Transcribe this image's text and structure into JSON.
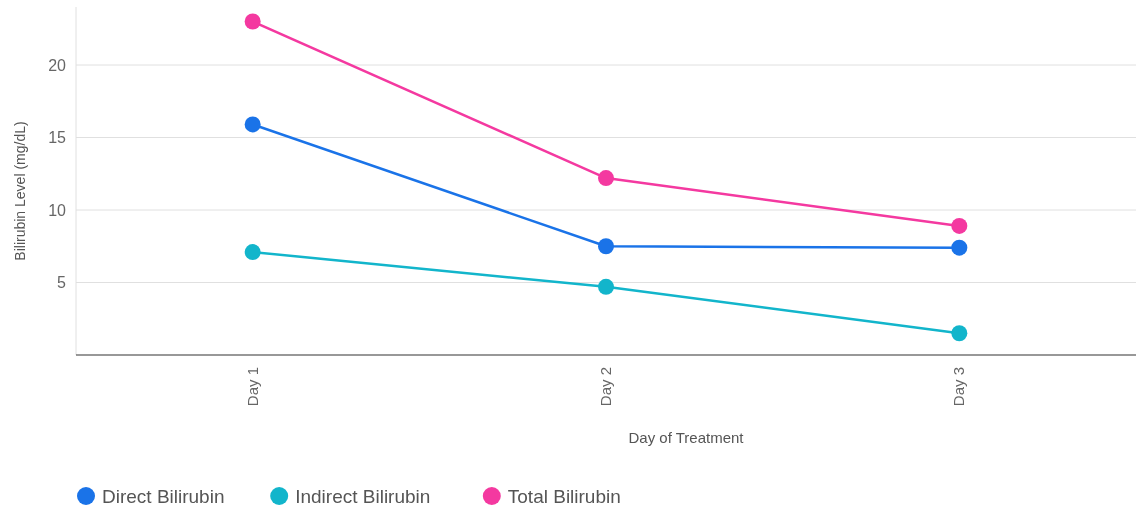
{
  "chart_data": {
    "type": "line",
    "xlabel": "Day of Treatment",
    "ylabel": "Bilirubin Level (mg/dL)",
    "categories": [
      "Day 1",
      "Day 2",
      "Day 3"
    ],
    "series": [
      {
        "name": "Direct Bilirubin",
        "color": "#1a73e8",
        "values": [
          15.9,
          7.5,
          7.4
        ]
      },
      {
        "name": "Indirect Bilirubin",
        "color": "#12b5cb",
        "values": [
          7.1,
          4.7,
          1.5
        ]
      },
      {
        "name": "Total Bilirubin",
        "color": "#f439a0",
        "values": [
          23,
          12.2,
          8.9
        ]
      }
    ],
    "ylim": [
      0,
      24
    ],
    "yticks": [
      5,
      10,
      15,
      20
    ],
    "grid": "y",
    "legend": "bottom left",
    "marker": "circle",
    "line_style": "solid"
  }
}
